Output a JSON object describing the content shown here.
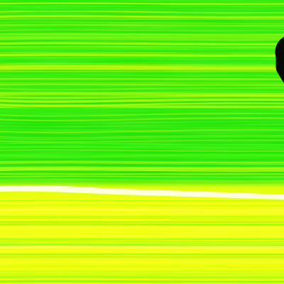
{
  "image": {
    "subject": "false-color-layered-texture",
    "colors": {
      "green": "#12e000",
      "bright_green": "#2aff00",
      "yellow_green": "#b8ff00",
      "yellow": "#f2ff00",
      "pale_yellow": "#ffff6a",
      "white_band": "#ffffe8",
      "dark_blob": "#050a05"
    }
  }
}
